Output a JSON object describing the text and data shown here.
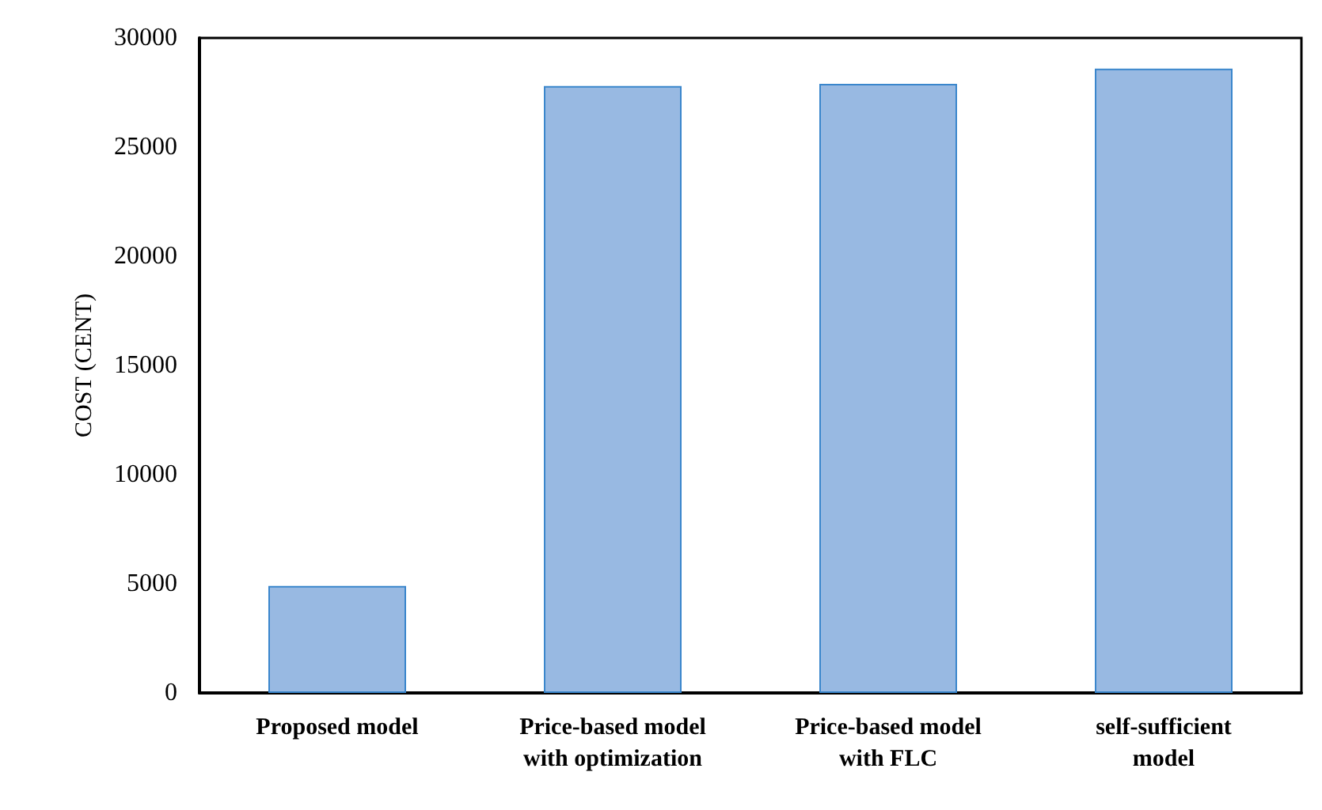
{
  "chart_data": {
    "type": "bar",
    "ylabel": "COST (CENT)",
    "categories": [
      "Proposed model",
      "Price-based model\nwith optimization",
      "Price-based model\nwith FLC",
      "self-sufficient\nmodel"
    ],
    "values": [
      4900,
      27800,
      27900,
      28600
    ],
    "color": "#98b9e2",
    "ylim": [
      0,
      30000
    ],
    "yticks": [
      0,
      5000,
      10000,
      15000,
      20000,
      25000,
      30000
    ],
    "grid": false
  }
}
